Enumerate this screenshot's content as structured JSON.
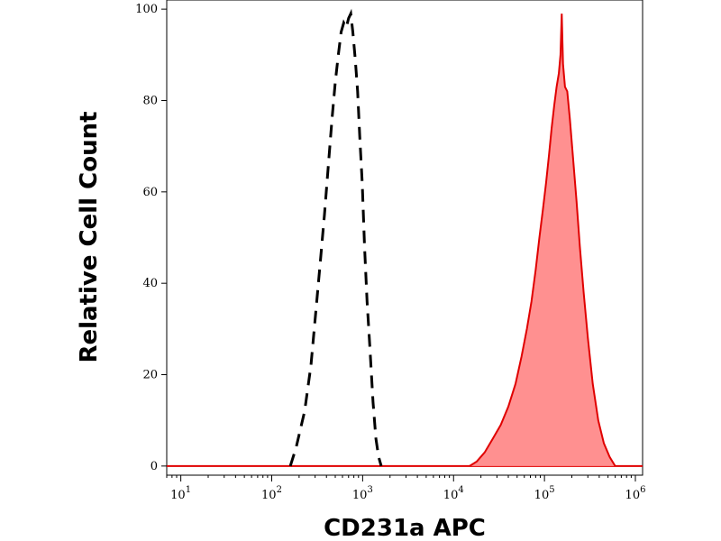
{
  "chart_data": {
    "type": "area",
    "xlabel": "CD231a APC",
    "ylabel": "Relative Cell Count",
    "x_scale": "log",
    "xlim": [
      7,
      1200000
    ],
    "ylim": [
      -2,
      102
    ],
    "y_ticks": [
      0,
      20,
      40,
      60,
      80,
      100
    ],
    "x_ticks": [
      {
        "value": 10,
        "base": "10",
        "exp": "1"
      },
      {
        "value": 100,
        "base": "10",
        "exp": "2"
      },
      {
        "value": 1000,
        "base": "10",
        "exp": "3"
      },
      {
        "value": 10000,
        "base": "10",
        "exp": "4"
      },
      {
        "value": 100000,
        "base": "10",
        "exp": "5"
      },
      {
        "value": 1000000,
        "base": "10",
        "exp": "6"
      }
    ],
    "grid": false,
    "legend": "none",
    "series": [
      {
        "style": "dashed",
        "color": "#000000",
        "filled": false,
        "points": [
          [
            160,
            0
          ],
          [
            185,
            4
          ],
          [
            230,
            12
          ],
          [
            270,
            22
          ],
          [
            300,
            32
          ],
          [
            340,
            44
          ],
          [
            380,
            55
          ],
          [
            420,
            66
          ],
          [
            460,
            76
          ],
          [
            500,
            84
          ],
          [
            540,
            90
          ],
          [
            580,
            95
          ],
          [
            620,
            97
          ],
          [
            660,
            96
          ],
          [
            700,
            98
          ],
          [
            740,
            99
          ],
          [
            780,
            95
          ],
          [
            830,
            89
          ],
          [
            880,
            82
          ],
          [
            930,
            72
          ],
          [
            990,
            62
          ],
          [
            1050,
            48
          ],
          [
            1120,
            36
          ],
          [
            1200,
            26
          ],
          [
            1300,
            14
          ],
          [
            1400,
            6
          ],
          [
            1500,
            2
          ],
          [
            1600,
            0
          ]
        ]
      },
      {
        "style": "solid",
        "color": "#e00000",
        "fill": "#ff9090",
        "filled": true,
        "points": [
          [
            15000,
            0
          ],
          [
            18000,
            1
          ],
          [
            22000,
            3
          ],
          [
            27000,
            6
          ],
          [
            33000,
            9
          ],
          [
            40000,
            13
          ],
          [
            48000,
            18
          ],
          [
            56000,
            24
          ],
          [
            64000,
            30
          ],
          [
            72000,
            36
          ],
          [
            80000,
            43
          ],
          [
            88000,
            50
          ],
          [
            96000,
            56
          ],
          [
            104000,
            62
          ],
          [
            112000,
            68
          ],
          [
            120000,
            74
          ],
          [
            128000,
            79
          ],
          [
            136000,
            83
          ],
          [
            144000,
            86
          ],
          [
            150000,
            90
          ],
          [
            155000,
            99
          ],
          [
            160000,
            88
          ],
          [
            168000,
            83
          ],
          [
            178000,
            82
          ],
          [
            190000,
            76
          ],
          [
            205000,
            68
          ],
          [
            225000,
            58
          ],
          [
            245000,
            48
          ],
          [
            270000,
            38
          ],
          [
            300000,
            28
          ],
          [
            340000,
            18
          ],
          [
            390000,
            10
          ],
          [
            450000,
            5
          ],
          [
            520000,
            2
          ],
          [
            600000,
            0
          ]
        ]
      }
    ]
  }
}
